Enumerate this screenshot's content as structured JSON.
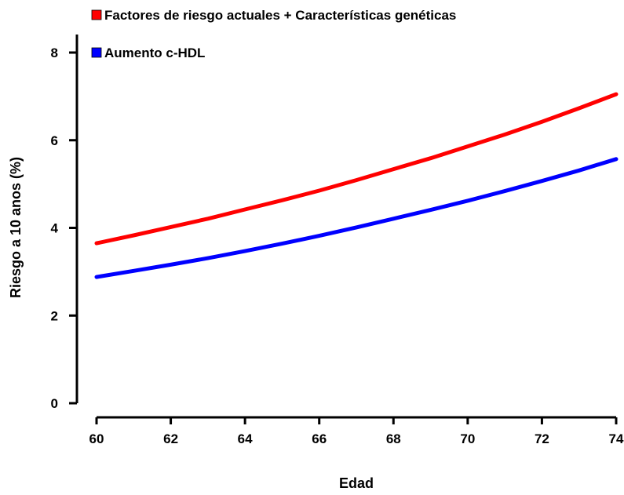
{
  "chart_data": {
    "type": "line",
    "xlabel": "Edad",
    "ylabel": "Riesgo a 10 anos (%)",
    "xlim": [
      60,
      74
    ],
    "ylim": [
      0,
      8
    ],
    "x_ticks": [
      60,
      62,
      64,
      66,
      68,
      70,
      72,
      74
    ],
    "y_ticks": [
      0,
      2,
      4,
      6,
      8
    ],
    "grid": false,
    "legend_position": "top-left",
    "x": [
      60,
      61,
      62,
      63,
      64,
      65,
      66,
      67,
      68,
      69,
      70,
      71,
      72,
      73,
      74
    ],
    "series": [
      {
        "name": "Factores de riesgo actuales + Características genéticas",
        "color": "#ff0000",
        "values": [
          3.65,
          3.83,
          4.02,
          4.21,
          4.42,
          4.63,
          4.85,
          5.09,
          5.34,
          5.59,
          5.86,
          6.13,
          6.42,
          6.73,
          7.05
        ]
      },
      {
        "name": "Aumento c-HDL",
        "color": "#0000ff",
        "values": [
          2.88,
          3.02,
          3.16,
          3.31,
          3.47,
          3.64,
          3.82,
          4.01,
          4.21,
          4.41,
          4.62,
          4.84,
          5.07,
          5.31,
          5.57
        ]
      }
    ]
  }
}
